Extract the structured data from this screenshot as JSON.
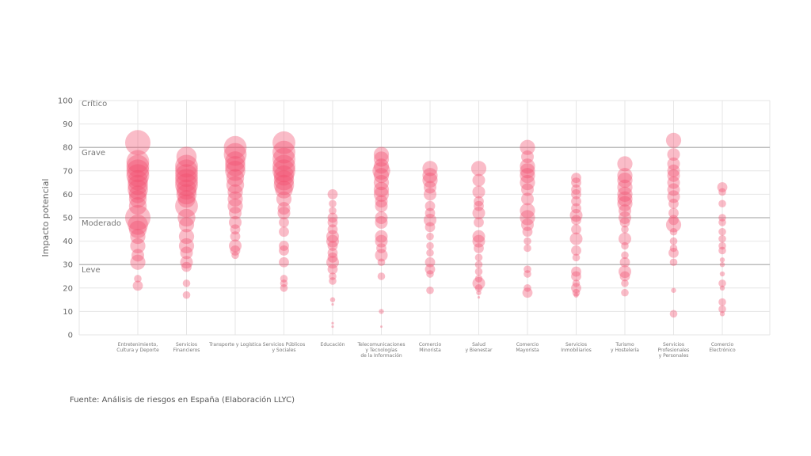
{
  "chart_data": {
    "type": "scatter",
    "title": "",
    "ylabel": "Impacto potencial",
    "xlabel": "",
    "ylim": [
      0,
      100
    ],
    "yticks": [
      0,
      10,
      20,
      30,
      40,
      50,
      60,
      70,
      80,
      90,
      100
    ],
    "grid": true,
    "color": "#f2506e",
    "zones": [
      {
        "label": "Crítico",
        "value": 100
      },
      {
        "label": "Grave",
        "value": 80
      },
      {
        "label": "Moderado",
        "value": 50
      },
      {
        "label": "Leve",
        "value": 30
      }
    ],
    "categories": [
      [
        "Entretenimiento,",
        "Cultura y Deporte"
      ],
      [
        "Servicios",
        "Financieros"
      ],
      [
        "Transporte y Logística"
      ],
      [
        "Servicios Públicos",
        "y Sociales"
      ],
      [
        "Educación"
      ],
      [
        "Telecomunicaciones",
        "y Tecnologías",
        "de la Información"
      ],
      [
        "Comercio",
        "Minorista"
      ],
      [
        "Salud",
        "y Bienestar"
      ],
      [
        "Comercio",
        "Mayorista"
      ],
      [
        "Servicios",
        "Inmobiliarios"
      ],
      [
        "Turismo",
        "y Hostelería"
      ],
      [
        "Servicios",
        "Profesionales",
        "y Personales"
      ],
      [
        "Comercio",
        "Electrónico"
      ]
    ],
    "series": [
      [
        [
          82,
          10
        ],
        [
          74,
          9
        ],
        [
          72,
          9
        ],
        [
          70,
          9
        ],
        [
          68,
          9
        ],
        [
          66,
          8
        ],
        [
          64,
          8
        ],
        [
          62,
          8
        ],
        [
          60,
          7
        ],
        [
          58,
          7
        ],
        [
          55,
          7
        ],
        [
          50,
          10
        ],
        [
          47,
          8
        ],
        [
          45,
          7
        ],
        [
          42,
          6
        ],
        [
          38,
          6
        ],
        [
          34,
          5
        ],
        [
          31,
          6
        ],
        [
          24,
          3
        ],
        [
          21,
          4
        ]
      ],
      [
        [
          76,
          8
        ],
        [
          72,
          9
        ],
        [
          70,
          9
        ],
        [
          68,
          9
        ],
        [
          66,
          9
        ],
        [
          64,
          9
        ],
        [
          62,
          8
        ],
        [
          60,
          8
        ],
        [
          58,
          7
        ],
        [
          55,
          9
        ],
        [
          50,
          7
        ],
        [
          47,
          6
        ],
        [
          42,
          6
        ],
        [
          38,
          6
        ],
        [
          35,
          5
        ],
        [
          31,
          5
        ],
        [
          29,
          4
        ],
        [
          22,
          3
        ],
        [
          17,
          3
        ]
      ],
      [
        [
          80,
          9
        ],
        [
          77,
          9
        ],
        [
          74,
          8
        ],
        [
          72,
          8
        ],
        [
          70,
          8
        ],
        [
          67,
          7
        ],
        [
          64,
          7
        ],
        [
          61,
          6
        ],
        [
          58,
          6
        ],
        [
          55,
          6
        ],
        [
          52,
          5
        ],
        [
          48,
          5
        ],
        [
          45,
          4
        ],
        [
          42,
          4
        ],
        [
          38,
          5
        ],
        [
          36,
          4
        ],
        [
          34,
          3
        ]
      ],
      [
        [
          82,
          9
        ],
        [
          78,
          9
        ],
        [
          75,
          9
        ],
        [
          72,
          9
        ],
        [
          70,
          9
        ],
        [
          68,
          8
        ],
        [
          66,
          8
        ],
        [
          64,
          8
        ],
        [
          62,
          7
        ],
        [
          58,
          6
        ],
        [
          54,
          5
        ],
        [
          52,
          5
        ],
        [
          48,
          4
        ],
        [
          44,
          4
        ],
        [
          38,
          4
        ],
        [
          36,
          4
        ],
        [
          31,
          4
        ],
        [
          24,
          3
        ],
        [
          22,
          3
        ],
        [
          20,
          3
        ]
      ],
      [
        [
          60,
          4
        ],
        [
          56,
          3
        ],
        [
          53,
          3
        ],
        [
          50,
          4
        ],
        [
          48,
          4
        ],
        [
          45,
          4
        ],
        [
          42,
          5
        ],
        [
          40,
          5
        ],
        [
          38,
          4
        ],
        [
          35,
          4
        ],
        [
          33,
          4
        ],
        [
          31,
          5
        ],
        [
          28,
          4
        ],
        [
          25,
          3
        ],
        [
          23,
          3
        ],
        [
          15,
          2
        ],
        [
          13,
          1
        ],
        [
          5,
          1
        ],
        [
          3.5,
          1
        ]
      ],
      [
        [
          77,
          6
        ],
        [
          75,
          6
        ],
        [
          72,
          6
        ],
        [
          70,
          7
        ],
        [
          68,
          6
        ],
        [
          65,
          6
        ],
        [
          62,
          6
        ],
        [
          60,
          6
        ],
        [
          57,
          5
        ],
        [
          55,
          5
        ],
        [
          50,
          5
        ],
        [
          48,
          5
        ],
        [
          42,
          5
        ],
        [
          40,
          5
        ],
        [
          37,
          4
        ],
        [
          34,
          5
        ],
        [
          31,
          3
        ],
        [
          25,
          3
        ],
        [
          10,
          2
        ],
        [
          3.5,
          0.5
        ]
      ],
      [
        [
          71,
          6
        ],
        [
          68,
          6
        ],
        [
          66,
          6
        ],
        [
          63,
          5
        ],
        [
          60,
          5
        ],
        [
          55,
          4
        ],
        [
          52,
          4
        ],
        [
          49,
          5
        ],
        [
          46,
          4
        ],
        [
          42,
          3
        ],
        [
          38,
          3
        ],
        [
          35,
          3
        ],
        [
          31,
          4
        ],
        [
          28,
          4
        ],
        [
          26,
          3
        ],
        [
          19,
          3
        ]
      ],
      [
        [
          71,
          6
        ],
        [
          66,
          5
        ],
        [
          61,
          5
        ],
        [
          57,
          4
        ],
        [
          55,
          4
        ],
        [
          52,
          5
        ],
        [
          48,
          4
        ],
        [
          42,
          5
        ],
        [
          40,
          5
        ],
        [
          37,
          4
        ],
        [
          33,
          3
        ],
        [
          30,
          3
        ],
        [
          27,
          3
        ],
        [
          24,
          3
        ],
        [
          22,
          5
        ],
        [
          20,
          3
        ],
        [
          18,
          2
        ],
        [
          16,
          1
        ]
      ],
      [
        [
          80,
          6
        ],
        [
          76,
          5
        ],
        [
          72,
          6
        ],
        [
          70,
          6
        ],
        [
          68,
          6
        ],
        [
          65,
          6
        ],
        [
          62,
          5
        ],
        [
          58,
          5
        ],
        [
          53,
          6
        ],
        [
          50,
          6
        ],
        [
          47,
          5
        ],
        [
          44,
          4
        ],
        [
          40,
          3
        ],
        [
          37,
          3
        ],
        [
          28,
          3
        ],
        [
          26,
          3
        ],
        [
          20,
          3
        ],
        [
          18,
          4
        ]
      ],
      [
        [
          67,
          4
        ],
        [
          65,
          4
        ],
        [
          62,
          4
        ],
        [
          60,
          4
        ],
        [
          57,
          4
        ],
        [
          54,
          4
        ],
        [
          51,
          5
        ],
        [
          49,
          4
        ],
        [
          45,
          4
        ],
        [
          41,
          5
        ],
        [
          36,
          4
        ],
        [
          33,
          3
        ],
        [
          27,
          4
        ],
        [
          25,
          4
        ],
        [
          22,
          3
        ],
        [
          20,
          4
        ],
        [
          18,
          3
        ],
        [
          17,
          2
        ]
      ],
      [
        [
          73,
          6
        ],
        [
          68,
          6
        ],
        [
          66,
          6
        ],
        [
          63,
          6
        ],
        [
          60,
          6
        ],
        [
          58,
          6
        ],
        [
          56,
          6
        ],
        [
          53,
          5
        ],
        [
          50,
          5
        ],
        [
          48,
          4
        ],
        [
          45,
          3
        ],
        [
          41,
          5
        ],
        [
          38,
          3
        ],
        [
          34,
          3
        ],
        [
          31,
          4
        ],
        [
          27,
          5
        ],
        [
          25,
          4
        ],
        [
          22,
          3
        ],
        [
          18,
          3
        ]
      ],
      [
        [
          83,
          6
        ],
        [
          77,
          5
        ],
        [
          73,
          5
        ],
        [
          70,
          5
        ],
        [
          68,
          5
        ],
        [
          65,
          5
        ],
        [
          62,
          5
        ],
        [
          59,
          5
        ],
        [
          56,
          4
        ],
        [
          52,
          4
        ],
        [
          49,
          4
        ],
        [
          47,
          6
        ],
        [
          44,
          3
        ],
        [
          40,
          3
        ],
        [
          37,
          3
        ],
        [
          35,
          4
        ],
        [
          31,
          3
        ],
        [
          19,
          2
        ],
        [
          9,
          3
        ]
      ],
      [
        [
          63,
          4
        ],
        [
          61,
          3
        ],
        [
          56,
          3
        ],
        [
          50,
          3
        ],
        [
          48,
          3
        ],
        [
          44,
          3
        ],
        [
          41,
          3
        ],
        [
          38,
          3
        ],
        [
          36,
          3
        ],
        [
          32,
          2
        ],
        [
          30,
          2
        ],
        [
          26,
          2
        ],
        [
          22,
          3
        ],
        [
          20,
          2
        ],
        [
          14,
          3
        ],
        [
          11,
          3
        ],
        [
          9,
          2
        ]
      ]
    ]
  },
  "source": "Fuente: Análisis de riesgos en España (Elaboración LLYC)"
}
